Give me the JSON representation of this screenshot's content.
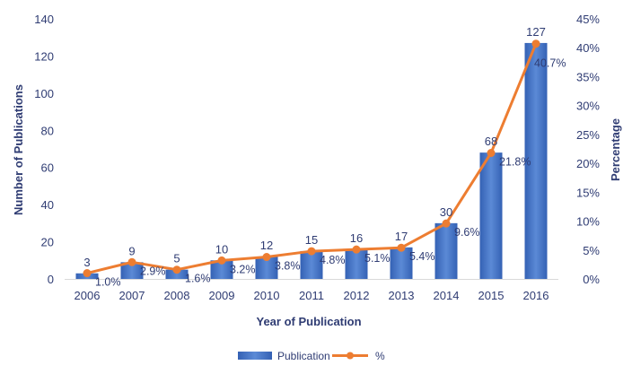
{
  "chart_data": {
    "type": "bar",
    "categories": [
      "2006",
      "2007",
      "2008",
      "2009",
      "2010",
      "2011",
      "2012",
      "2013",
      "2014",
      "2015",
      "2016"
    ],
    "series": [
      {
        "name": "Publication",
        "type": "bar",
        "axis": "left",
        "values": [
          3,
          9,
          5,
          10,
          12,
          15,
          16,
          17,
          30,
          68,
          127
        ],
        "data_labels": [
          "3",
          "9",
          "5",
          "10",
          "12",
          "15",
          "16",
          "17",
          "30",
          "68",
          "127"
        ],
        "color": "#4472c4"
      },
      {
        "name": "%",
        "type": "line",
        "axis": "right",
        "values": [
          1.0,
          2.9,
          1.6,
          3.2,
          3.8,
          4.8,
          5.1,
          5.4,
          9.6,
          21.8,
          40.7
        ],
        "data_labels": [
          "1.0%",
          "2.9%",
          "1.6%",
          "3.2%",
          "3.8%",
          "4.8%",
          "5.1%",
          "5.4%",
          "9.6%",
          "21.8%",
          "40.7%"
        ],
        "color": "#ed7d31"
      }
    ],
    "xlabel": "Year of Publication",
    "ylabel": "Number of Publications",
    "y2label": "Percentage",
    "ylim": [
      0,
      140
    ],
    "yticks": [
      "0",
      "20",
      "40",
      "60",
      "80",
      "100",
      "120",
      "140"
    ],
    "y2lim": [
      0,
      45
    ],
    "y2ticks": [
      "0%",
      "5%",
      "10%",
      "15%",
      "20%",
      "25%",
      "30%",
      "35%",
      "40%",
      "45%"
    ],
    "grid": false,
    "legend": "bottom-center"
  }
}
